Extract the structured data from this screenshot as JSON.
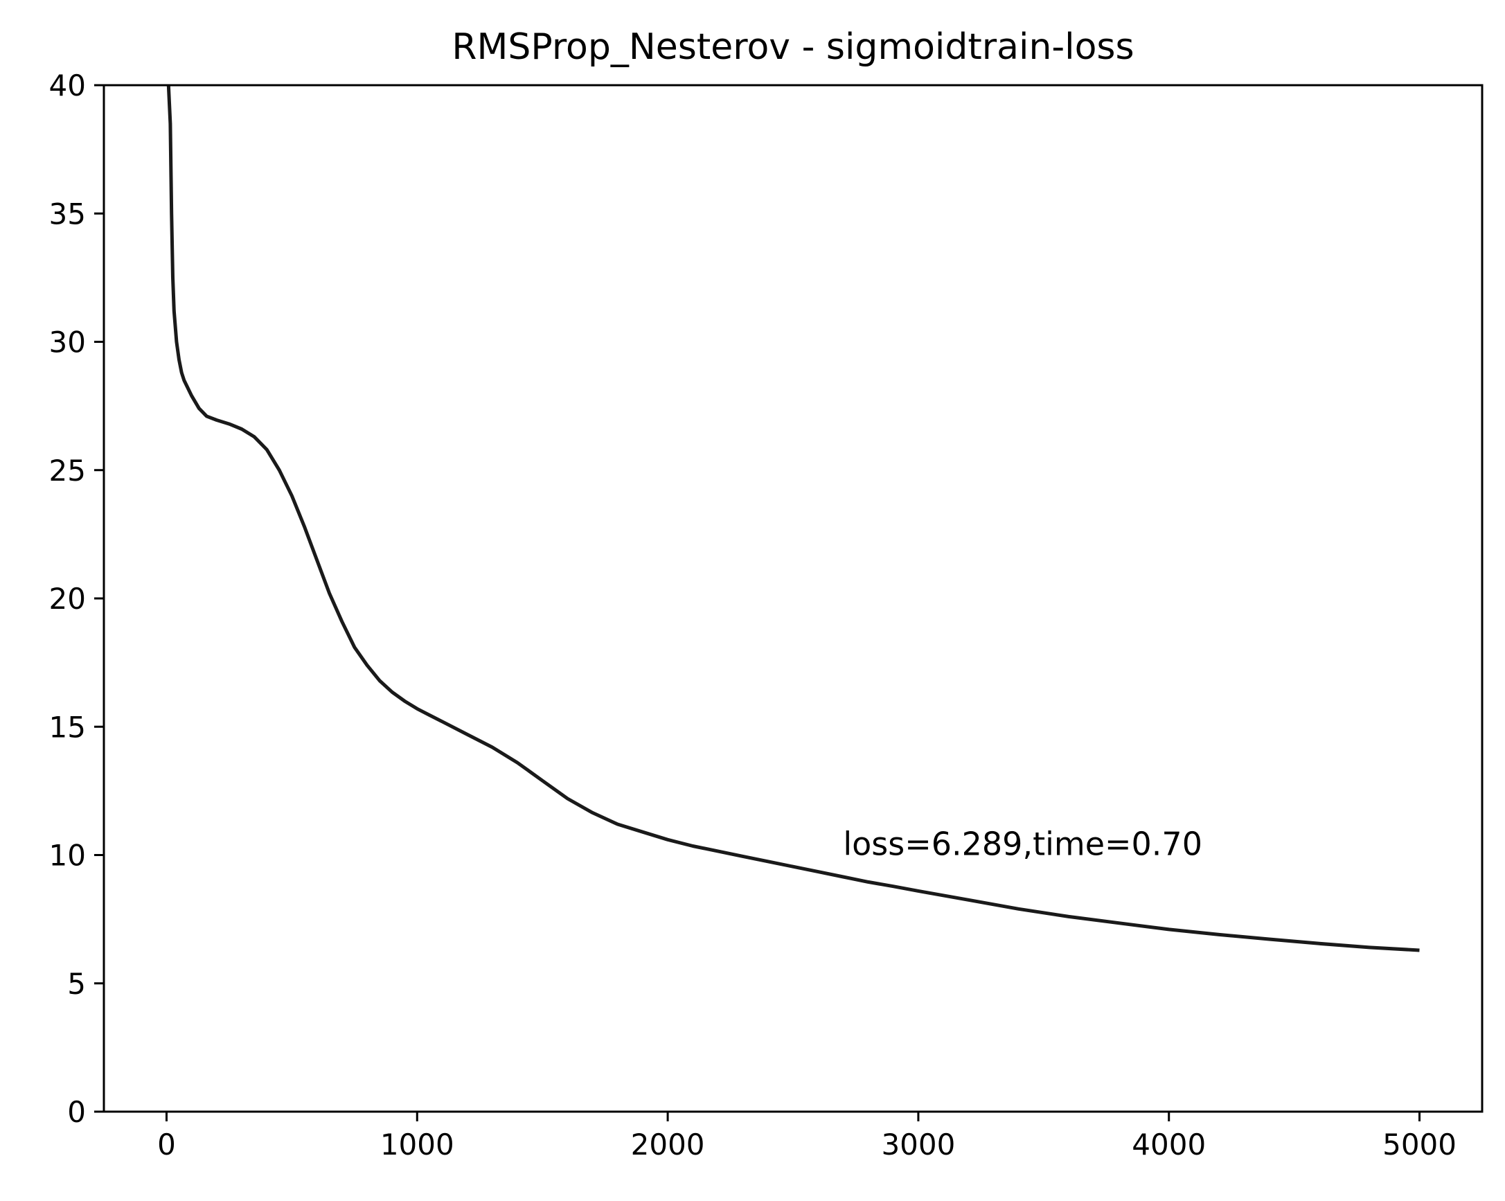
{
  "chart_data": {
    "type": "line",
    "title": "RMSProp_Nesterov - sigmoidtrain-loss",
    "xlabel": "",
    "ylabel": "",
    "xlim": [
      -250,
      5250
    ],
    "ylim": [
      0,
      40
    ],
    "grid": false,
    "xticks": [
      0,
      1000,
      2000,
      3000,
      4000,
      5000
    ],
    "xtick_labels": [
      "0",
      "1000",
      "2000",
      "3000",
      "4000",
      "5000"
    ],
    "yticks": [
      0,
      5,
      10,
      15,
      20,
      25,
      30,
      35,
      40
    ],
    "ytick_labels": [
      "0",
      "5",
      "10",
      "15",
      "20",
      "25",
      "30",
      "35",
      "40"
    ],
    "series": [
      {
        "color": "#1a1a1a",
        "x": [
          8,
          15,
          20,
          25,
          30,
          40,
          50,
          60,
          70,
          80,
          100,
          130,
          160,
          200,
          250,
          300,
          350,
          400,
          450,
          500,
          550,
          600,
          650,
          700,
          750,
          800,
          850,
          900,
          950,
          1000,
          1050,
          1100,
          1200,
          1300,
          1400,
          1500,
          1600,
          1700,
          1800,
          1900,
          2000,
          2100,
          2200,
          2300,
          2400,
          2500,
          2600,
          2700,
          2800,
          2900,
          3000,
          3200,
          3400,
          3600,
          3800,
          4000,
          4200,
          4400,
          4600,
          4800,
          5000
        ],
        "y": [
          40.0,
          38.5,
          35.0,
          32.5,
          31.2,
          30.0,
          29.3,
          28.8,
          28.5,
          28.3,
          27.9,
          27.4,
          27.1,
          26.95,
          26.8,
          26.6,
          26.3,
          25.8,
          25.0,
          24.0,
          22.8,
          21.5,
          20.2,
          19.1,
          18.1,
          17.4,
          16.8,
          16.35,
          16.0,
          15.7,
          15.45,
          15.2,
          14.7,
          14.2,
          13.6,
          12.9,
          12.2,
          11.65,
          11.2,
          10.9,
          10.6,
          10.35,
          10.15,
          9.95,
          9.75,
          9.55,
          9.35,
          9.15,
          8.95,
          8.78,
          8.6,
          8.25,
          7.9,
          7.6,
          7.35,
          7.1,
          6.9,
          6.72,
          6.55,
          6.4,
          6.289
        ]
      }
    ],
    "annotations": [
      {
        "text": "loss=6.289,time=0.70",
        "x": 2700,
        "y": 10.0
      }
    ]
  }
}
